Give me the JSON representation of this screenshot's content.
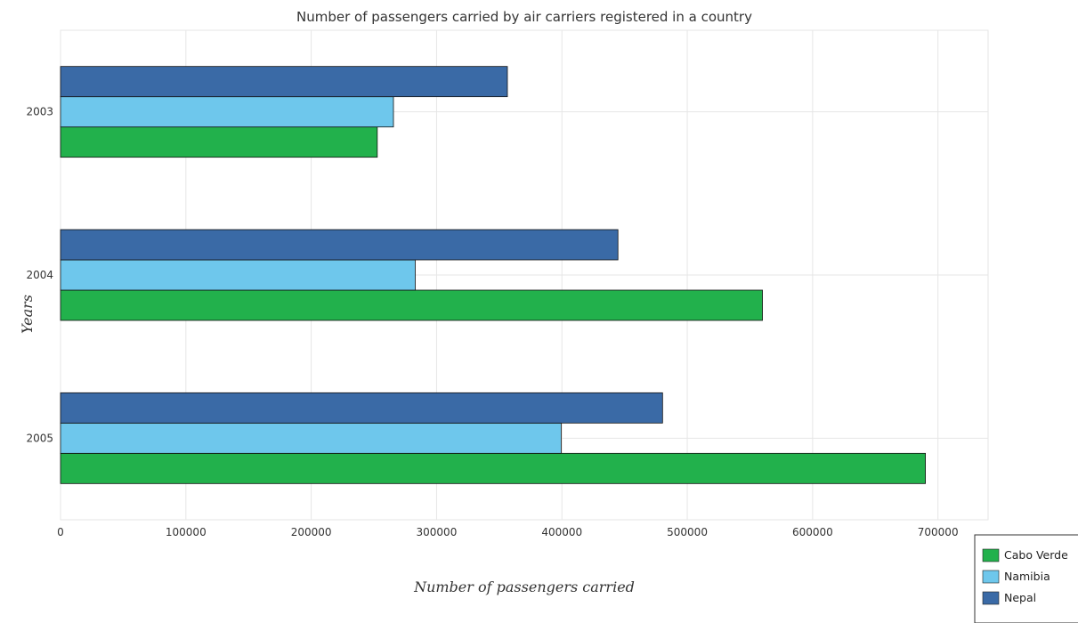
{
  "chart_data": {
    "type": "bar",
    "orientation": "horizontal",
    "title": "Number of passengers carried by air carriers registered in a country",
    "xlabel": "Number of passengers carried",
    "ylabel": "Years",
    "categories": [
      "2003",
      "2004",
      "2005"
    ],
    "series": [
      {
        "name": "Cabo Verde",
        "color": "#22b14c",
        "values": [
          252700,
          560000,
          690000
        ]
      },
      {
        "name": "Namibia",
        "color": "#6ec7ec",
        "values": [
          265600,
          283000,
          399400
        ]
      },
      {
        "name": "Nepal",
        "color": "#3a6aa6",
        "values": [
          356500,
          444700,
          480300
        ]
      }
    ],
    "xlim": [
      0,
      740000
    ],
    "xticks": [
      0,
      100000,
      200000,
      300000,
      400000,
      500000,
      600000,
      700000
    ],
    "xtick_labels": [
      "0",
      "100000",
      "200000",
      "300000",
      "400000",
      "500000",
      "600000",
      "700000"
    ],
    "grid": true,
    "legend_position": "bottom-right"
  }
}
